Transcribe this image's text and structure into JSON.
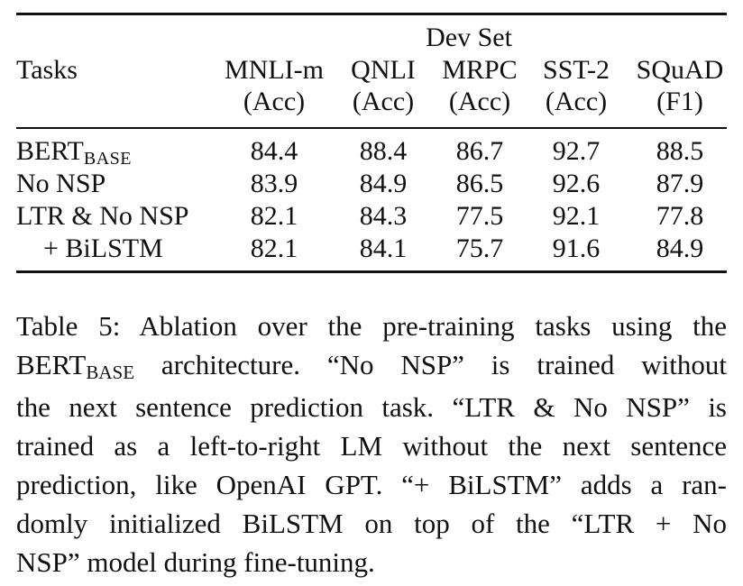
{
  "table": {
    "group_header": "Dev Set",
    "row_header": "Tasks",
    "columns": [
      {
        "name": "MNLI-m",
        "metric": "(Acc)"
      },
      {
        "name": "QNLI",
        "metric": "(Acc)"
      },
      {
        "name": "MRPC",
        "metric": "(Acc)"
      },
      {
        "name": "SST-2",
        "metric": "(Acc)"
      },
      {
        "name": "SQuAD",
        "metric": "(F1)"
      }
    ],
    "rows": [
      {
        "label": "BERT",
        "label_sub": "BASE",
        "values": [
          "84.4",
          "88.4",
          "86.7",
          "92.7",
          "88.5"
        ]
      },
      {
        "label": "No NSP",
        "values": [
          "83.9",
          "84.9",
          "86.5",
          "92.6",
          "87.9"
        ]
      },
      {
        "label": "LTR & No NSP",
        "values": [
          "82.1",
          "84.3",
          "77.5",
          "92.1",
          "77.8"
        ]
      },
      {
        "label": "+ BiLSTM",
        "values": [
          "82.1",
          "84.1",
          "75.7",
          "91.6",
          "84.9"
        ]
      }
    ]
  },
  "caption": {
    "line1": "Table 5: Ablation over the pre-training tasks using the",
    "line2_a": "BERT",
    "line2_sub": "BASE",
    "line2_b": " architecture. “No NSP” is trained without",
    "line3": "the next sentence prediction task. “LTR & No NSP” is",
    "line4": "trained as a left-to-right LM without the next sentence",
    "line5": "prediction, like OpenAI GPT. “+ BiLSTM” adds a ran-",
    "line6": "domly initialized BiLSTM on top of the “LTR + No",
    "line7": "NSP” model during fine-tuning."
  }
}
